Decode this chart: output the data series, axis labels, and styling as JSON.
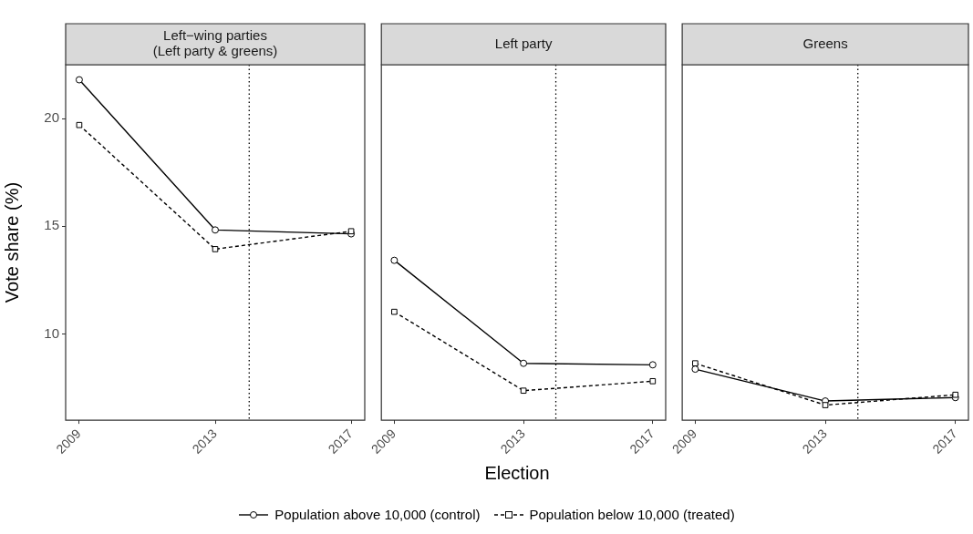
{
  "chart_data": [
    {
      "type": "line",
      "title": "Left−wing parties\n(Left party & greens)",
      "ylabel": "Vote share (%)",
      "x": [
        2009,
        2013,
        2017
      ],
      "xlim": [
        2008.6,
        2017.4
      ],
      "xticks": [
        2009,
        2013,
        2017
      ],
      "ylim": [
        6,
        22.5
      ],
      "yticks": [
        10,
        15,
        20
      ],
      "grid": false,
      "legend": "bottom",
      "ref_lines": [
        {
          "axis": "x",
          "value": 2014,
          "line_style": "dotted",
          "color": "#000000"
        }
      ],
      "series": [
        {
          "name": "Population above 10,000 (control)",
          "color": "#000000",
          "marker": "circle",
          "line_style": "solid",
          "values": [
            21.8,
            14.83,
            14.65
          ]
        },
        {
          "name": "Population below 10,000 (treated)",
          "color": "#000000",
          "marker": "square",
          "line_style": "dashed",
          "values": [
            19.7,
            13.94,
            14.77
          ]
        }
      ]
    },
    {
      "type": "line",
      "title": "Left party",
      "xlabel": "Election",
      "x": [
        2009,
        2013,
        2017
      ],
      "xlim": [
        2008.6,
        2017.4
      ],
      "xticks": [
        2009,
        2013,
        2017
      ],
      "ylim": [
        6,
        22.5
      ],
      "yticks": [
        10,
        15,
        20
      ],
      "grid": false,
      "tick_labels": "x",
      "ref_lines": [
        {
          "axis": "x",
          "value": 2014,
          "line_style": "dotted",
          "color": "#000000"
        }
      ],
      "series": [
        {
          "color": "#000000",
          "marker": "circle",
          "line_style": "solid",
          "values": [
            13.42,
            8.64,
            8.57
          ]
        },
        {
          "color": "#000000",
          "marker": "square",
          "line_style": "dashed",
          "values": [
            11.03,
            7.37,
            7.81
          ]
        }
      ]
    },
    {
      "type": "line",
      "title": "Greens",
      "x": [
        2009,
        2013,
        2017
      ],
      "xlim": [
        2008.6,
        2017.4
      ],
      "xticks": [
        2009,
        2013,
        2017
      ],
      "ylim": [
        6,
        22.5
      ],
      "yticks": [
        10,
        15,
        20
      ],
      "grid": false,
      "tick_labels": "x",
      "ref_lines": [
        {
          "axis": "x",
          "value": 2014,
          "line_style": "dotted",
          "color": "#000000"
        }
      ],
      "series": [
        {
          "color": "#000000",
          "marker": "circle",
          "line_style": "solid",
          "values": [
            8.37,
            6.89,
            7.05
          ]
        },
        {
          "color": "#000000",
          "marker": "square",
          "line_style": "dashed",
          "values": [
            8.64,
            6.7,
            7.18
          ]
        }
      ]
    }
  ]
}
